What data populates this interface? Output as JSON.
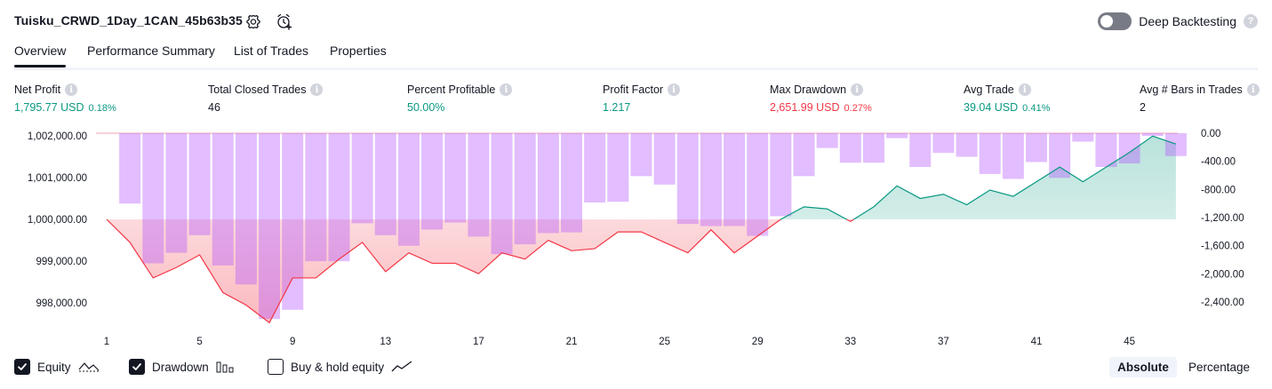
{
  "header": {
    "title": "Tuisku_CRWD_1Day_1CAN_45b63b35",
    "deep_backtesting_label": "Deep Backtesting",
    "deep_backtesting_on": false
  },
  "tabs": [
    {
      "label": "Overview",
      "active": true
    },
    {
      "label": "Performance Summary",
      "active": false
    },
    {
      "label": "List of Trades",
      "active": false
    },
    {
      "label": "Properties",
      "active": false
    }
  ],
  "metrics": [
    {
      "label": "Net Profit",
      "value": "1,795.77 USD",
      "pct": "0.18%",
      "color": "#089981"
    },
    {
      "label": "Total Closed Trades",
      "value": "46",
      "pct": "",
      "color": "#131722"
    },
    {
      "label": "Percent Profitable",
      "value": "50.00%",
      "pct": "",
      "color": "#089981"
    },
    {
      "label": "Profit Factor",
      "value": "1.217",
      "pct": "",
      "color": "#089981"
    },
    {
      "label": "Max Drawdown",
      "value": "2,651.99 USD",
      "pct": "0.27%",
      "color": "#f23645"
    },
    {
      "label": "Avg Trade",
      "value": "39.04 USD",
      "pct": "0.41%",
      "color": "#089981"
    },
    {
      "label": "Avg # Bars in Trades",
      "value": "2",
      "pct": "",
      "color": "#131722"
    }
  ],
  "legend": {
    "equity_label": "Equity",
    "equity_checked": true,
    "drawdown_label": "Drawdown",
    "drawdown_checked": true,
    "buyhold_label": "Buy & hold equity",
    "buyhold_checked": false
  },
  "view_toggle": {
    "absolute_label": "Absolute",
    "percentage_label": "Percentage",
    "selected": "Absolute"
  },
  "chart_data": {
    "type": "line",
    "x_ticks": [
      1,
      5,
      9,
      13,
      17,
      21,
      25,
      29,
      33,
      37,
      41,
      45
    ],
    "left_axis": {
      "ticks": [
        "1,002,000.00",
        "1,001,000.00",
        "1,000,000.00",
        "999,000.00",
        "998,000.00"
      ],
      "tick_values": [
        1002000,
        1001000,
        1000000,
        999000,
        998000
      ],
      "ylim": [
        997600,
        1002060
      ]
    },
    "right_axis": {
      "ticks": [
        "0.00",
        "-400.00",
        "-800.00",
        "-1,200.00",
        "-1,600.00",
        "-2,000.00",
        "-2,400.00"
      ],
      "tick_values": [
        0,
        -400,
        -800,
        -1200,
        -1600,
        -2000,
        -2400
      ],
      "ylim": [
        -2651.99,
        0
      ]
    },
    "baseline": 1000000,
    "series": [
      {
        "type": "area",
        "x": [
          1,
          2,
          3,
          4,
          5,
          6,
          7,
          8,
          9,
          10,
          11,
          12,
          13,
          14,
          15,
          16,
          17,
          18,
          19,
          20,
          21,
          22,
          23,
          24,
          25,
          26,
          27,
          28,
          29,
          30,
          31,
          32,
          33,
          34,
          35,
          36,
          37,
          38,
          39,
          40,
          41,
          42,
          43,
          44,
          45,
          46,
          47
        ],
        "values": [
          1000000,
          999450,
          998600,
          998850,
          999150,
          998250,
          997950,
          997530,
          998600,
          998600,
          999050,
          999450,
          998750,
          999200,
          998950,
          998950,
          998700,
          999200,
          999050,
          999500,
          999250,
          999300,
          999700,
          999700,
          999450,
          999200,
          999750,
          999200,
          999600,
          1000000,
          1000300,
          1000250,
          999950,
          1000300,
          1000800,
          1000500,
          1000600,
          1000350,
          1000700,
          1000550,
          1000900,
          1001250,
          1000900,
          1001250,
          1001600,
          1001990,
          1001800
        ],
        "color_positive": "#089981",
        "color_negative": "#f23645"
      },
      {
        "type": "bar",
        "x": [
          2,
          3,
          4,
          5,
          6,
          7,
          8,
          9,
          10,
          11,
          12,
          13,
          14,
          15,
          16,
          17,
          18,
          19,
          20,
          21,
          22,
          23,
          24,
          25,
          26,
          27,
          28,
          29,
          30,
          31,
          32,
          33,
          34,
          35,
          36,
          37,
          38,
          39,
          40,
          41,
          42,
          43,
          44,
          45,
          46,
          47
        ],
        "values": [
          -1000,
          -1850,
          -1700,
          -1450,
          -1880,
          -2150,
          -2640,
          -2510,
          -1820,
          -1820,
          -1280,
          -1450,
          -1600,
          -1370,
          -1270,
          -1470,
          -1720,
          -1580,
          -1420,
          -1410,
          -985,
          -975,
          -610,
          -730,
          -1290,
          -1320,
          -1320,
          -1460,
          -1180,
          -610,
          -210,
          -420,
          -420,
          -70,
          -480,
          -280,
          -335,
          -580,
          -650,
          -410,
          -635,
          -120,
          -480,
          -430,
          -40,
          -325
        ],
        "color": "#b452ff"
      }
    ]
  }
}
